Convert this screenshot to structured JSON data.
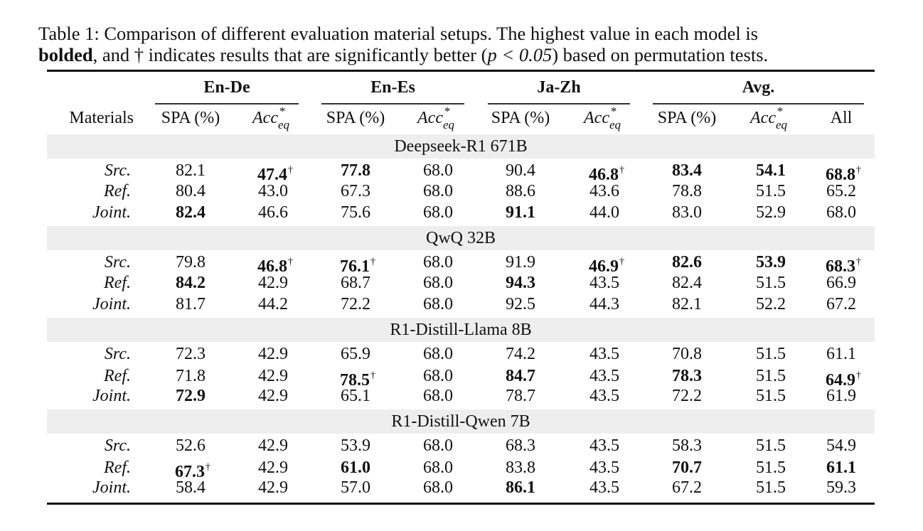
{
  "caption": {
    "label": "Table 1:",
    "line1": "Comparison of different evaluation material setups.  The highest value in each model is",
    "bold_word": "bolded",
    "line2_a": ", and † indicates results that are significantly better (",
    "math": "p < 0.05",
    "line2_b": ") based on permutation tests."
  },
  "header": {
    "materials": "Materials",
    "groups": [
      "En-De",
      "En-Es",
      "Ja-Zh",
      "Avg."
    ],
    "spa": "SPA (%)",
    "acc_base": "Acc",
    "acc_sup": "*",
    "acc_sub": "eq",
    "all": "All"
  },
  "sections": [
    {
      "model": "Deepseek-R1 671B",
      "rows": [
        {
          "material": "Src.",
          "cells": [
            {
              "v": "82.1"
            },
            {
              "v": "47.4",
              "b": true,
              "d": true
            },
            {
              "v": "77.8",
              "b": true
            },
            {
              "v": "68.0"
            },
            {
              "v": "90.4"
            },
            {
              "v": "46.8",
              "b": true,
              "d": true
            },
            {
              "v": "83.4",
              "b": true
            },
            {
              "v": "54.1",
              "b": true
            },
            {
              "v": "68.8",
              "b": true,
              "d": true
            }
          ]
        },
        {
          "material": "Ref.",
          "cells": [
            {
              "v": "80.4"
            },
            {
              "v": "43.0"
            },
            {
              "v": "67.3"
            },
            {
              "v": "68.0"
            },
            {
              "v": "88.6"
            },
            {
              "v": "43.6"
            },
            {
              "v": "78.8"
            },
            {
              "v": "51.5"
            },
            {
              "v": "65.2"
            }
          ]
        },
        {
          "material": "Joint.",
          "cells": [
            {
              "v": "82.4",
              "b": true
            },
            {
              "v": "46.6"
            },
            {
              "v": "75.6"
            },
            {
              "v": "68.0"
            },
            {
              "v": "91.1",
              "b": true
            },
            {
              "v": "44.0"
            },
            {
              "v": "83.0"
            },
            {
              "v": "52.9"
            },
            {
              "v": "68.0"
            }
          ]
        }
      ]
    },
    {
      "model": "QwQ 32B",
      "rows": [
        {
          "material": "Src.",
          "cells": [
            {
              "v": "79.8"
            },
            {
              "v": "46.8",
              "b": true,
              "d": true
            },
            {
              "v": "76.1",
              "b": true,
              "d": true
            },
            {
              "v": "68.0"
            },
            {
              "v": "91.9"
            },
            {
              "v": "46.9",
              "b": true,
              "d": true
            },
            {
              "v": "82.6",
              "b": true
            },
            {
              "v": "53.9",
              "b": true
            },
            {
              "v": "68.3",
              "b": true,
              "d": true
            }
          ]
        },
        {
          "material": "Ref.",
          "cells": [
            {
              "v": "84.2",
              "b": true
            },
            {
              "v": "42.9"
            },
            {
              "v": "68.7"
            },
            {
              "v": "68.0"
            },
            {
              "v": "94.3",
              "b": true
            },
            {
              "v": "43.5"
            },
            {
              "v": "82.4"
            },
            {
              "v": "51.5"
            },
            {
              "v": "66.9"
            }
          ]
        },
        {
          "material": "Joint.",
          "cells": [
            {
              "v": "81.7"
            },
            {
              "v": "44.2"
            },
            {
              "v": "72.2"
            },
            {
              "v": "68.0"
            },
            {
              "v": "92.5"
            },
            {
              "v": "44.3"
            },
            {
              "v": "82.1"
            },
            {
              "v": "52.2"
            },
            {
              "v": "67.2"
            }
          ]
        }
      ]
    },
    {
      "model": "R1-Distill-Llama 8B",
      "rows": [
        {
          "material": "Src.",
          "cells": [
            {
              "v": "72.3"
            },
            {
              "v": "42.9"
            },
            {
              "v": "65.9"
            },
            {
              "v": "68.0"
            },
            {
              "v": "74.2"
            },
            {
              "v": "43.5"
            },
            {
              "v": "70.8"
            },
            {
              "v": "51.5"
            },
            {
              "v": "61.1"
            }
          ]
        },
        {
          "material": "Ref.",
          "cells": [
            {
              "v": "71.8"
            },
            {
              "v": "42.9"
            },
            {
              "v": "78.5",
              "b": true,
              "d": true
            },
            {
              "v": "68.0"
            },
            {
              "v": "84.7",
              "b": true
            },
            {
              "v": "43.5"
            },
            {
              "v": "78.3",
              "b": true
            },
            {
              "v": "51.5"
            },
            {
              "v": "64.9",
              "b": true,
              "d": true
            }
          ]
        },
        {
          "material": "Joint.",
          "cells": [
            {
              "v": "72.9",
              "b": true
            },
            {
              "v": "42.9"
            },
            {
              "v": "65.1"
            },
            {
              "v": "68.0"
            },
            {
              "v": "78.7"
            },
            {
              "v": "43.5"
            },
            {
              "v": "72.2"
            },
            {
              "v": "51.5"
            },
            {
              "v": "61.9"
            }
          ]
        }
      ]
    },
    {
      "model": "R1-Distill-Qwen 7B",
      "rows": [
        {
          "material": "Src.",
          "cells": [
            {
              "v": "52.6"
            },
            {
              "v": "42.9"
            },
            {
              "v": "53.9"
            },
            {
              "v": "68.0"
            },
            {
              "v": "68.3"
            },
            {
              "v": "43.5"
            },
            {
              "v": "58.3"
            },
            {
              "v": "51.5"
            },
            {
              "v": "54.9"
            }
          ]
        },
        {
          "material": "Ref.",
          "cells": [
            {
              "v": "67.3",
              "b": true,
              "d": true
            },
            {
              "v": "42.9"
            },
            {
              "v": "61.0",
              "b": true
            },
            {
              "v": "68.0"
            },
            {
              "v": "83.8"
            },
            {
              "v": "43.5"
            },
            {
              "v": "70.7",
              "b": true
            },
            {
              "v": "51.5"
            },
            {
              "v": "61.1",
              "b": true
            }
          ]
        },
        {
          "material": "Joint.",
          "cells": [
            {
              "v": "58.4"
            },
            {
              "v": "42.9"
            },
            {
              "v": "57.0"
            },
            {
              "v": "68.0"
            },
            {
              "v": "86.1",
              "b": true
            },
            {
              "v": "43.5"
            },
            {
              "v": "67.2"
            },
            {
              "v": "51.5"
            },
            {
              "v": "59.3"
            }
          ]
        }
      ]
    }
  ],
  "dagger": "†"
}
